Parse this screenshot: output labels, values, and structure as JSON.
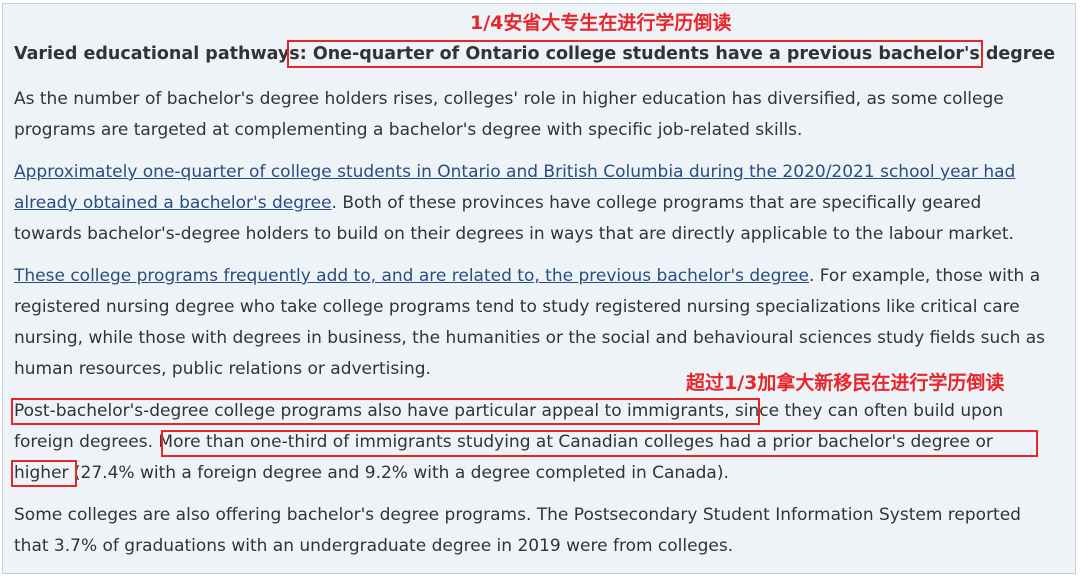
{
  "annotations": {
    "top": "1/4安省大专生在进行学历倒读",
    "middle": "超过1/3加拿大新移民在进行学历倒读"
  },
  "heading": {
    "label": "Varied educational pathways:",
    "title": "One-quarter of Ontario college students have a previous bachelor's degree"
  },
  "p1": {
    "l1": "As the number of bachelor's degree holders rises, colleges' role in higher education has diversified, as some college",
    "l2": "programs are targeted at complementing a bachelor's degree with specific job-related skills."
  },
  "p2": {
    "link1": "Approximately one-quarter of college students in Ontario and British Columbia during the 2020/2021 school year had",
    "link2": "already obtained a bachelor's degree",
    "l2rest": ". Both of these provinces have college programs that are specifically geared",
    "l3": "towards bachelor's-degree holders to build on their degrees in ways that are directly applicable to the labour market."
  },
  "p3": {
    "link": "These college programs frequently add to, and are related to, the previous bachelor's degree",
    "l1rest": ". For example, those with a",
    "l2": "registered nursing degree who take college programs tend to study registered nursing specializations like critical care",
    "l3": "nursing, while those with degrees in business, the humanities or the social and behavioural sciences study fields such as",
    "l4": "human resources, public relations or advertising."
  },
  "p4": {
    "l1a": "Post-bachelor's-degree college programs also have particular appeal to immigrants,",
    "l1b": " since they can often build upon",
    "l2a": "foreign degrees. ",
    "l2b": "More than one-third of immigrants studying at Canadian colleges had a prior bachelor's degree or",
    "l3a": "higher ",
    "l3b": "(27.4% with a foreign degree and 9.2% with a degree completed in Canada)."
  },
  "p5": {
    "l1": "Some colleges are also offering bachelor's degree programs. The Postsecondary Student Information System reported",
    "l2": "that 3.7% of graduations with an undergraduate degree in 2019 were from colleges."
  },
  "colors": {
    "annotation": "#e8262a",
    "link": "#2a4d80",
    "panel": "#eef3f8",
    "text": "#333333"
  }
}
